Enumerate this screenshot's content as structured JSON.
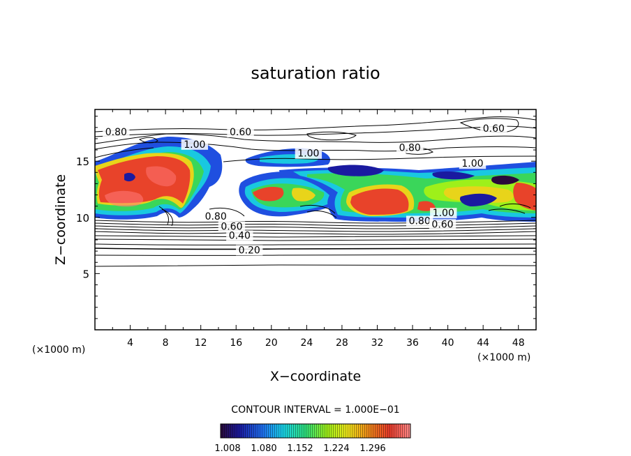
{
  "chart_data": {
    "type": "contour",
    "title": "saturation ratio",
    "xlabel": "X−coordinate",
    "ylabel": "Z−coordinate",
    "x_unit": "(×1000 m)",
    "z_unit": "(×1000 m)",
    "xlim": [
      0,
      50
    ],
    "ylim": [
      0,
      19.6
    ],
    "x_ticks": [
      4,
      8,
      12,
      16,
      20,
      24,
      28,
      32,
      36,
      40,
      44,
      48
    ],
    "y_ticks": [
      5,
      10,
      15
    ],
    "contour_interval_text": "CONTOUR INTERVAL = 1.000E−01",
    "colorbar": {
      "labels": [
        "1.008",
        "1.080",
        "1.152",
        "1.224",
        "1.296"
      ],
      "colors": [
        "#2a0a3a",
        "#1a1aa0",
        "#1f6ff0",
        "#19d3e8",
        "#2fe07a",
        "#9ef01a",
        "#f0e61a",
        "#f08a1a",
        "#e83a2a",
        "#ff8a8a"
      ]
    },
    "contour_labels": [
      {
        "text": "0.80",
        "x": 2.4,
        "z": 17.3
      },
      {
        "text": "0.60",
        "x": 16.5,
        "z": 17.3
      },
      {
        "text": "0.60",
        "x": 45.2,
        "z": 17.6
      },
      {
        "text": "1.00",
        "x": 11.3,
        "z": 16.2
      },
      {
        "text": "1.00",
        "x": 24.2,
        "z": 15.4
      },
      {
        "text": "0.80",
        "x": 35.7,
        "z": 15.9
      },
      {
        "text": "1.00",
        "x": 42.8,
        "z": 14.5
      },
      {
        "text": "0.80",
        "x": 13.7,
        "z": 9.8
      },
      {
        "text": "0.60",
        "x": 15.5,
        "z": 8.9
      },
      {
        "text": "0.40",
        "x": 16.4,
        "z": 8.1
      },
      {
        "text": "0.20",
        "x": 17.5,
        "z": 6.8
      },
      {
        "text": "0.80",
        "x": 36.8,
        "z": 9.4
      },
      {
        "text": "0.60",
        "x": 39.4,
        "z": 9.1
      },
      {
        "text": "1.00",
        "x": 39.5,
        "z": 10.1
      }
    ],
    "supersaturated_regions": [
      {
        "x": [
          0,
          14
        ],
        "z": [
          10,
          17
        ],
        "peak": 1.3
      },
      {
        "x": [
          15,
          28
        ],
        "z": [
          10.5,
          16
        ],
        "peak": 1.25
      },
      {
        "x": [
          27,
          50
        ],
        "z": [
          10,
          14.8
        ],
        "peak": 1.3
      }
    ],
    "grid": false
  }
}
